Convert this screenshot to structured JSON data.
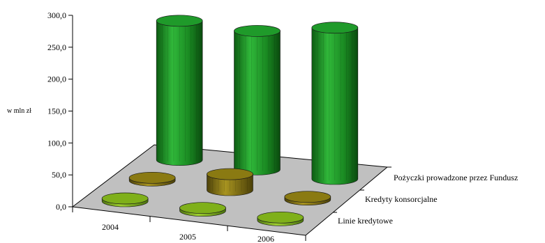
{
  "chart_data": {
    "type": "bar",
    "style": "3d-cylinder",
    "ylabel": "w mln zł",
    "ylim": [
      0,
      300
    ],
    "yticks": [
      "0,0",
      "50,0",
      "100,0",
      "150,0",
      "200,0",
      "250,0",
      "300,0"
    ],
    "categories": [
      "2004",
      "2005",
      "2006"
    ],
    "series": [
      {
        "name": "Linie kredytowe",
        "values": [
          2,
          2,
          2
        ],
        "color": "#7fb01a"
      },
      {
        "name": "Kredyty konsorcjalne",
        "values": [
          2,
          25,
          3
        ],
        "color": "#8a7a12"
      },
      {
        "name": "Pożyczki prowadzone przez Fundusz",
        "values": [
          218,
          217,
          237
        ],
        "color": "#1f9a2a"
      }
    ],
    "grid": false,
    "legend": "series labels along depth axis (right)"
  }
}
